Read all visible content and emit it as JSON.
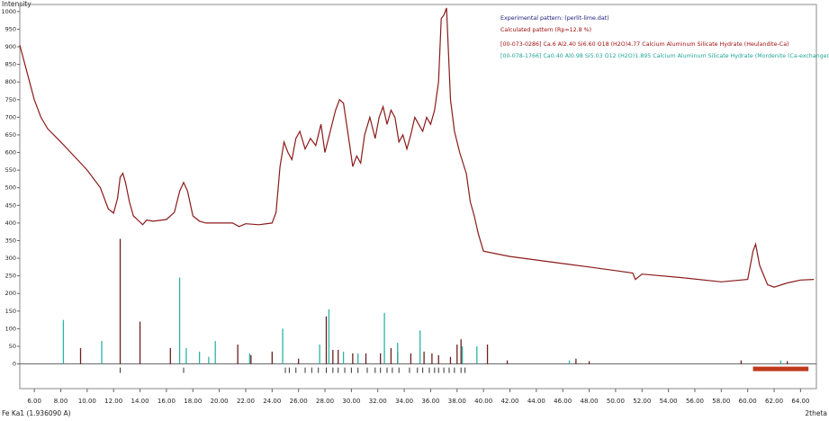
{
  "chart_data": {
    "type": "line",
    "y_label": "Intensity",
    "x_label": "2theta",
    "radiation_label": "Fe Ka1 (1.936090 A)",
    "xlim": [
      4.9,
      65.2
    ],
    "ylim": [
      -70,
      1020
    ],
    "yticks": [
      0,
      50,
      100,
      150,
      200,
      250,
      300,
      350,
      400,
      450,
      500,
      550,
      600,
      650,
      700,
      750,
      800,
      850,
      900,
      950,
      1000
    ],
    "xticks": [
      {
        "value": 6,
        "label": "6.00"
      },
      {
        "value": 8,
        "label": "8.00"
      },
      {
        "value": 10,
        "label": "10.00"
      },
      {
        "value": 12,
        "label": "12.00"
      },
      {
        "value": 14,
        "label": "14.00"
      },
      {
        "value": 16,
        "label": "16.00"
      },
      {
        "value": 18,
        "label": "18.00"
      },
      {
        "value": 20,
        "label": "20.00"
      },
      {
        "value": 22,
        "label": "22.00"
      },
      {
        "value": 24,
        "label": "24.00"
      },
      {
        "value": 26,
        "label": "26.00"
      },
      {
        "value": 28,
        "label": "28.00"
      },
      {
        "value": 30,
        "label": "30.00"
      },
      {
        "value": 32,
        "label": "32.00"
      },
      {
        "value": 34,
        "label": "34.00"
      },
      {
        "value": 36,
        "label": "36.00"
      },
      {
        "value": 38,
        "label": "38.00"
      },
      {
        "value": 40,
        "label": "40.00"
      },
      {
        "value": 42,
        "label": "42.00"
      },
      {
        "value": 44,
        "label": "44.00"
      },
      {
        "value": 46,
        "label": "46.00"
      },
      {
        "value": 48,
        "label": "48.00"
      },
      {
        "value": 50,
        "label": "50.00"
      },
      {
        "value": 52,
        "label": "52.00"
      },
      {
        "value": 54,
        "label": "54.00"
      },
      {
        "value": 56,
        "label": "56.00"
      },
      {
        "value": 58,
        "label": "58.00"
      },
      {
        "value": 60,
        "label": "60.00"
      },
      {
        "value": 62,
        "label": "62.00"
      },
      {
        "value": 64,
        "label": "64.00"
      }
    ],
    "calculated_label": "Calculated pattern (Rp=12.8 %)",
    "calculated_color": "#a01010",
    "series": [
      {
        "name": "Experimental pattern: (perlit-lime.dat)",
        "style": "line",
        "color": "#8b1a1a",
        "legend_color": "#1a1a7a",
        "x": [
          4.9,
          5.5,
          6,
          6.5,
          7,
          8,
          9,
          10,
          11,
          11.6,
          12,
          12.3,
          12.5,
          12.7,
          12.9,
          13.2,
          13.5,
          13.8,
          14.2,
          14.5,
          15,
          16,
          16.6,
          17,
          17.3,
          17.6,
          18,
          18.5,
          19,
          20,
          21,
          21.5,
          22,
          23,
          24,
          24.3,
          24.6,
          24.9,
          25.2,
          25.5,
          25.8,
          26.1,
          26.5,
          26.9,
          27.3,
          27.7,
          28,
          28.4,
          28.8,
          29.1,
          29.4,
          29.8,
          30.1,
          30.4,
          30.7,
          31,
          31.4,
          31.8,
          32.1,
          32.4,
          32.7,
          33,
          33.3,
          33.6,
          33.9,
          34.2,
          34.5,
          34.8,
          35.1,
          35.4,
          35.7,
          36,
          36.3,
          36.6,
          36.8,
          37,
          37.2,
          37.5,
          37.8,
          38.2,
          38.7,
          39,
          39.3,
          39.6,
          40,
          42,
          45,
          48,
          50,
          51.3,
          51.5,
          52,
          55,
          58,
          60,
          60.4,
          60.6,
          60.9,
          61.5,
          62,
          63,
          64,
          65
        ],
        "values": [
          905,
          820,
          750,
          700,
          668,
          630,
          590,
          550,
          500,
          440,
          428,
          470,
          530,
          541,
          515,
          460,
          420,
          410,
          395,
          408,
          405,
          410,
          430,
          490,
          515,
          490,
          420,
          405,
          400,
          400,
          400,
          390,
          398,
          395,
          400,
          430,
          560,
          630,
          600,
          580,
          640,
          660,
          610,
          640,
          620,
          680,
          600,
          660,
          720,
          750,
          740,
          640,
          560,
          590,
          570,
          650,
          700,
          640,
          700,
          730,
          680,
          720,
          700,
          630,
          650,
          610,
          650,
          700,
          680,
          660,
          700,
          680,
          720,
          800,
          980,
          990,
          1010,
          750,
          660,
          600,
          540,
          460,
          420,
          370,
          320,
          305,
          290,
          275,
          265,
          258,
          240,
          255,
          245,
          233,
          240,
          320,
          340,
          280,
          225,
          218,
          230,
          238,
          240
        ]
      },
      {
        "name": "[00-073-0286] Ca.6 Al2.40 Si6.60 O18 (H2O)4.77 Calcium Aluminum Silicate Hydrate (Heulandite-Ca)",
        "style": "stick",
        "color": "#6b1f1f",
        "legend_color": "#a01010",
        "x": [
          9.5,
          12.5,
          14,
          16.3,
          21.4,
          22.4,
          24,
          26,
          28.1,
          28.6,
          29,
          30.1,
          31.1,
          32.2,
          33,
          33.5,
          34.5,
          35.5,
          36.1,
          36.6,
          37.5,
          38,
          38.3,
          40.3,
          41.8,
          47,
          48,
          59.5,
          63
        ],
        "values": [
          45,
          355,
          120,
          45,
          55,
          25,
          35,
          15,
          135,
          40,
          40,
          30,
          30,
          30,
          45,
          35,
          30,
          35,
          30,
          25,
          20,
          55,
          70,
          55,
          10,
          15,
          8,
          10,
          8
        ]
      },
      {
        "name": "[00-078-1766] Ca0.40 Al0.98 Si5.03 O12 (H2O)1.895 Calcium Aluminum Silicate Hydrate (Mordenite (Ca-exchanged))",
        "style": "stick",
        "color": "#2bb3a6",
        "legend_color": "#1fa595",
        "x": [
          8.2,
          11.1,
          17,
          17.5,
          18.5,
          19.2,
          19.7,
          22.3,
          24.8,
          27.6,
          28.3,
          29.4,
          30.5,
          32.5,
          33.5,
          35.2,
          38.4,
          39.5,
          46.5,
          62.5
        ],
        "values": [
          125,
          65,
          245,
          45,
          35,
          20,
          65,
          30,
          100,
          55,
          155,
          35,
          30,
          145,
          60,
          95,
          50,
          50,
          10,
          10
        ]
      }
    ],
    "reflection_positions": [
      12.5,
      17.3,
      25,
      25.3,
      25.8,
      26.5,
      27,
      27.5,
      28.1,
      28.6,
      29,
      29.5,
      30,
      30.5,
      31.2,
      31.8,
      32.2,
      32.7,
      33.1,
      33.6,
      34.4,
      35,
      35.4,
      35.9,
      36.3,
      36.6,
      37,
      37.4,
      37.8,
      38.3,
      38.6
    ],
    "excluded_region": [
      60.4,
      64.6
    ],
    "excluded_color": "#c0391b"
  }
}
